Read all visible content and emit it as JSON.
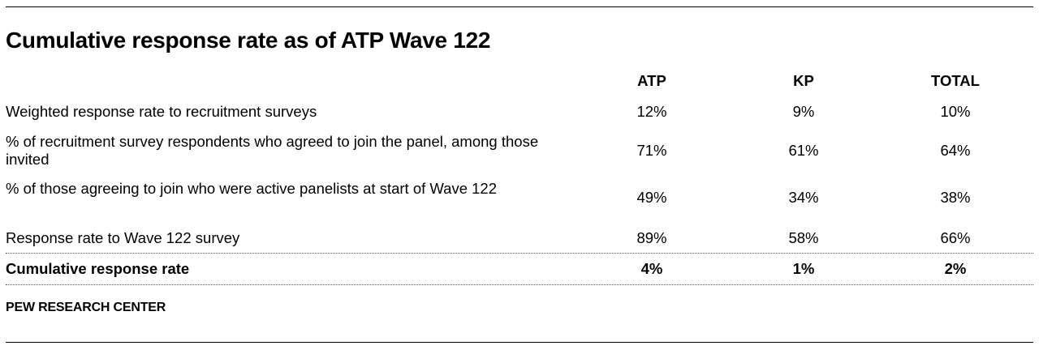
{
  "chart_data": {
    "type": "table",
    "title": "Cumulative response rate as of ATP Wave 122",
    "columns": [
      "ATP",
      "KP",
      "TOTAL"
    ],
    "rows": [
      {
        "label": "Weighted response rate to recruitment surveys",
        "values": [
          "12%",
          "9%",
          "10%"
        ]
      },
      {
        "label": "% of recruitment survey respondents who agreed to join the panel, among those invited",
        "values": [
          "71%",
          "61%",
          "64%"
        ]
      },
      {
        "label": "% of those agreeing to join who were active panelists at start of Wave 122",
        "values": [
          "49%",
          "34%",
          "38%"
        ]
      },
      {
        "label": "Response rate to Wave 122 survey",
        "values": [
          "89%",
          "58%",
          "66%"
        ]
      },
      {
        "label": "Cumulative response rate",
        "values": [
          "4%",
          "1%",
          "2%"
        ],
        "bold": true
      }
    ],
    "source": "PEW RESEARCH CENTER"
  }
}
